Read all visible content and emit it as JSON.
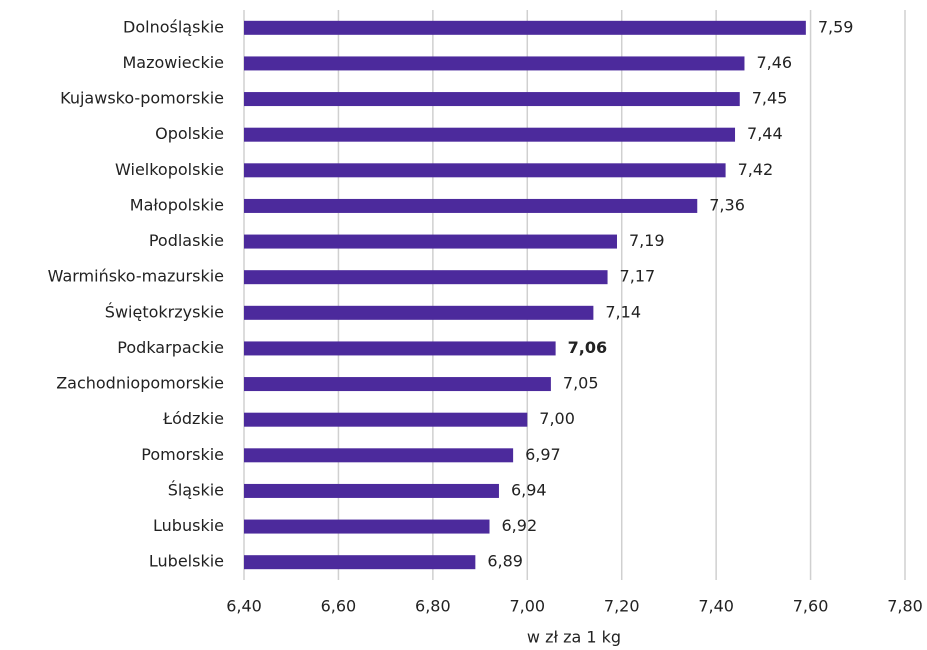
{
  "chart_data": {
    "type": "hbar",
    "categories": [
      "Dolnośląskie",
      "Mazowieckie",
      "Kujawsko-pomorskie",
      "Opolskie",
      "Wielkopolskie",
      "Małopolskie",
      "Podlaskie",
      "Warmińsko-mazurskie",
      "Świętokrzyskie",
      "Podkarpackie",
      "Zachodniopomorskie",
      "Łódzkie",
      "Pomorskie",
      "Śląskie",
      "Lubuskie",
      "Lubelskie"
    ],
    "values": [
      7.59,
      7.46,
      7.45,
      7.44,
      7.42,
      7.36,
      7.19,
      7.17,
      7.14,
      7.06,
      7.05,
      7.0,
      6.97,
      6.94,
      6.92,
      6.89
    ],
    "value_labels": [
      "7,59",
      "7,46",
      "7,45",
      "7,44",
      "7,42",
      "7,36",
      "7,19",
      "7,17",
      "7,14",
      "7,06",
      "7,05",
      "7,00",
      "6,97",
      "6,94",
      "6,92",
      "6,89"
    ],
    "highlight_index": 9,
    "color": "#4c2a9c",
    "xlabel": "w zł za 1 kg",
    "xlim": [
      6.4,
      7.8
    ],
    "xticks": [
      {
        "value": 6.4,
        "label": "6,40"
      },
      {
        "value": 6.6,
        "label": "6,60"
      },
      {
        "value": 6.8,
        "label": "6,80"
      },
      {
        "value": 7.0,
        "label": "7,00"
      },
      {
        "value": 7.2,
        "label": "7,20"
      },
      {
        "value": 7.4,
        "label": "7,40"
      },
      {
        "value": 7.6,
        "label": "7,60"
      },
      {
        "value": 7.8,
        "label": "7,80"
      }
    ],
    "grid": true
  }
}
